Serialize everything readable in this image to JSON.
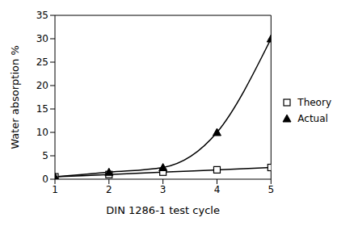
{
  "chart_data": {
    "type": "line",
    "x_label": "DIN 1286-1 test cycle",
    "y_label": "Water absorption %",
    "x": [
      1,
      2,
      3,
      4,
      5
    ],
    "xlim": [
      1,
      5
    ],
    "xticks": [
      1,
      2,
      3,
      4,
      5
    ],
    "ylim": [
      0,
      35
    ],
    "yticks": [
      0,
      5,
      10,
      15,
      20,
      25,
      30,
      35
    ],
    "grid": false,
    "legend": "right",
    "series": [
      {
        "name": "Theory",
        "color": "#000000",
        "marker": "square",
        "line_style": "solid",
        "values": [
          0.5,
          1.0,
          1.5,
          2.0,
          2.5
        ]
      },
      {
        "name": "Actual",
        "color": "#000000",
        "marker": "triangle",
        "line_style": "solid",
        "values": [
          0.5,
          1.5,
          2.5,
          10,
          30
        ]
      }
    ]
  }
}
